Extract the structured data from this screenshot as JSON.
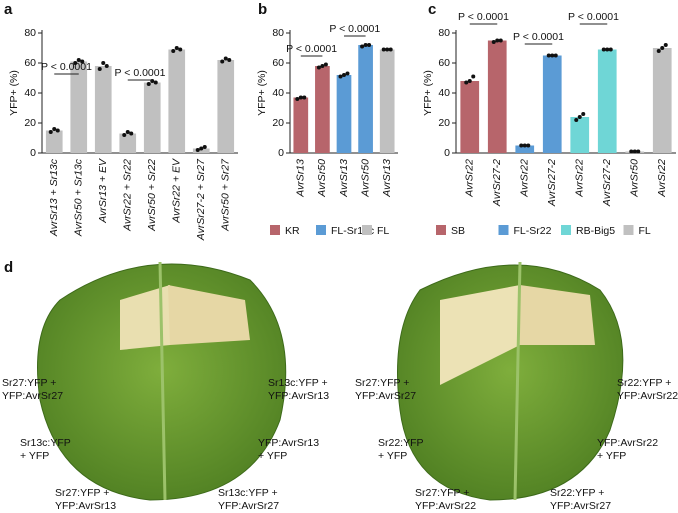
{
  "chart_data": [
    {
      "type": "bar",
      "panel": "a",
      "ylabel": "YFP+ (%)",
      "ylim": [
        0,
        80
      ],
      "yticks": [
        0,
        20,
        40,
        60,
        80
      ],
      "color": "#c0c0c0",
      "categories": [
        "AvrSr13 + Sr13c",
        "AvrSr50 + Sr13c",
        "AvrSr13 + EV",
        "AvrSr22 + Sr22",
        "AvrSr50 + Sr22",
        "AvrSr22 + EV",
        "AvrSr27-2 + Sr27",
        "AvrSr50 + Sr27"
      ],
      "values": [
        15,
        61,
        58,
        13,
        47,
        69,
        3,
        62
      ],
      "points": [
        [
          14,
          16,
          15
        ],
        [
          60,
          62,
          61
        ],
        [
          56,
          60,
          58
        ],
        [
          12,
          14,
          13
        ],
        [
          46,
          48,
          47
        ],
        [
          68,
          70,
          69
        ],
        [
          2,
          3,
          4
        ],
        [
          61,
          63,
          62
        ]
      ],
      "annotations": [
        "P < 0.0001",
        "P < 0.0001"
      ]
    },
    {
      "type": "bar",
      "panel": "b",
      "ylabel": "YFP+ (%)",
      "ylim": [
        0,
        80
      ],
      "yticks": [
        0,
        20,
        40,
        60,
        80
      ],
      "categories": [
        "AvrSr13",
        "AvrSr50",
        "AvrSr13",
        "AvrSr50",
        "AvrSr13"
      ],
      "series": [
        {
          "name": "KR",
          "color": "#b7656b",
          "values": [
            37,
            58,
            null,
            null,
            null
          ],
          "points": [
            [
              36,
              37,
              37
            ],
            [
              57,
              58,
              59
            ],
            null,
            null,
            null
          ]
        },
        {
          "name": "FL-Sr13c",
          "color": "#5b9bd5",
          "values": [
            null,
            null,
            52,
            72,
            null
          ],
          "points": [
            null,
            null,
            [
              51,
              52,
              53
            ],
            [
              71,
              72,
              72
            ],
            null
          ]
        },
        {
          "name": "FL",
          "color": "#c0c0c0",
          "values": [
            null,
            null,
            null,
            null,
            69
          ],
          "points": [
            null,
            null,
            null,
            null,
            [
              69,
              69,
              69
            ]
          ]
        }
      ],
      "annotations": [
        "P < 0.0001",
        "P < 0.0001"
      ]
    },
    {
      "type": "bar",
      "panel": "c",
      "ylabel": "YFP+ (%)",
      "ylim": [
        0,
        80
      ],
      "yticks": [
        0,
        20,
        40,
        60,
        80
      ],
      "categories": [
        "AvrSr22",
        "AvrSr27-2",
        "AvrSr22",
        "AvrSr27-2",
        "AvrSr22",
        "AvrSr27-2",
        "AvrSr50",
        "AvrSr22"
      ],
      "series": [
        {
          "name": "SB",
          "color": "#b7656b",
          "values": [
            48,
            75,
            null,
            null,
            null,
            null,
            null,
            null
          ],
          "points": [
            [
              47,
              48,
              51
            ],
            [
              74,
              75,
              75
            ],
            null,
            null,
            null,
            null,
            null,
            null
          ]
        },
        {
          "name": "FL-Sr22",
          "color": "#5b9bd5",
          "values": [
            null,
            null,
            5,
            65,
            null,
            null,
            null,
            null
          ],
          "points": [
            null,
            null,
            [
              5,
              5,
              5
            ],
            [
              65,
              65,
              65
            ],
            null,
            null,
            null,
            null
          ]
        },
        {
          "name": "RB-Big5",
          "color": "#6fd6d6",
          "values": [
            null,
            null,
            null,
            null,
            24,
            69,
            null,
            null
          ],
          "points": [
            null,
            null,
            null,
            null,
            [
              22,
              24,
              26
            ],
            [
              69,
              69,
              69
            ],
            null,
            null
          ]
        },
        {
          "name": "FL",
          "color": "#c0c0c0",
          "values": [
            null,
            null,
            null,
            null,
            null,
            null,
            1,
            70
          ],
          "points": [
            null,
            null,
            null,
            null,
            null,
            null,
            [
              1,
              1,
              1
            ],
            [
              68,
              70,
              72
            ]
          ]
        }
      ],
      "annotations": [
        "P < 0.0001",
        "P < 0.0001",
        "P < 0.0001"
      ]
    }
  ],
  "panel_d": {
    "panel": "d",
    "left_leaf": [
      [
        "Sr27:YFP +",
        "YFP:AvrSr27"
      ],
      [
        "Sr13c:YFP",
        "+ YFP"
      ],
      [
        "Sr27:YFP +",
        "YFP:AvrSr13"
      ],
      [
        "Sr13c:YFP +",
        "YFP:AvrSr13"
      ],
      [
        "YFP:AvrSr13",
        "+ YFP"
      ],
      [
        "Sr13c:YFP +",
        "YFP:AvrSr27"
      ]
    ],
    "right_leaf": [
      [
        "Sr27:YFP +",
        "YFP:AvrSr27"
      ],
      [
        "Sr22:YFP",
        "+ YFP"
      ],
      [
        "Sr27:YFP +",
        "YFP:AvrSr22"
      ],
      [
        "Sr22:YFP +",
        "YFP:AvrSr22"
      ],
      [
        "YFP:AvrSr22",
        "+ YFP"
      ],
      [
        "Sr22:YFP +",
        "YFP:AvrSr27"
      ]
    ]
  }
}
